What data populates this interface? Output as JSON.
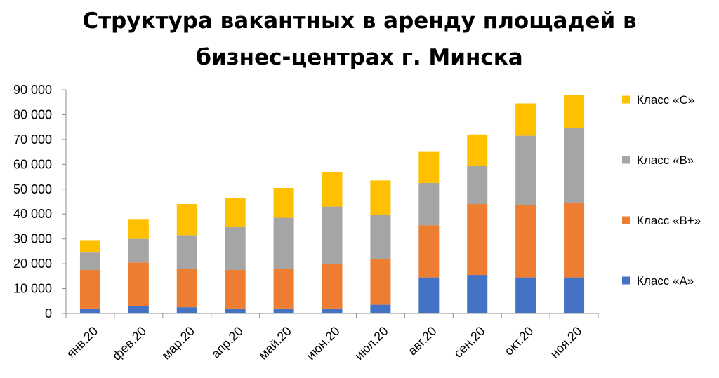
{
  "chart_data": {
    "type": "bar",
    "stacked": true,
    "title": "Структура вакантных в аренду площадей в бизнес-центрах г. Минска",
    "title_lines": [
      "Структура вакантных в аренду площадей в",
      "бизнес-центрах г. Минска"
    ],
    "categories": [
      "янв.20",
      "фев.20",
      "мар.20",
      "апр.20",
      "май.20",
      "июн.20",
      "июл.20",
      "авг.20",
      "сен.20",
      "окт.20",
      "ноя.20"
    ],
    "series": [
      {
        "name": "Класс «А»",
        "color": "#4472C4",
        "values": [
          2000,
          3000,
          2500,
          2000,
          2000,
          2000,
          3500,
          14500,
          15500,
          14500,
          14500
        ]
      },
      {
        "name": "Класс «В+»",
        "color": "#ED7D31",
        "values": [
          15500,
          17500,
          15500,
          15500,
          16000,
          18000,
          18500,
          21000,
          28500,
          29000,
          30000
        ]
      },
      {
        "name": "Класс «В»",
        "color": "#A5A5A5",
        "values": [
          7000,
          9500,
          13500,
          17500,
          20500,
          23000,
          17500,
          17000,
          15500,
          28000,
          30000
        ]
      },
      {
        "name": "Класс «С»",
        "color": "#FFC000",
        "values": [
          5000,
          8000,
          12500,
          11500,
          12000,
          14000,
          14000,
          12500,
          12500,
          13000,
          13500
        ]
      }
    ],
    "legend_order": [
      "Класс «С»",
      "Класс «В»",
      "Класс «В+»",
      "Класс «А»"
    ],
    "ylim": [
      0,
      90000
    ],
    "yticks": [
      "0",
      "10 000",
      "20 000",
      "30 000",
      "40 000",
      "50 000",
      "60 000",
      "70 000",
      "80 000",
      "90 000"
    ],
    "ytick_values": [
      0,
      10000,
      20000,
      30000,
      40000,
      50000,
      60000,
      70000,
      80000,
      90000
    ],
    "grid": false,
    "legend_position": "right",
    "xlabel": "",
    "ylabel": ""
  }
}
